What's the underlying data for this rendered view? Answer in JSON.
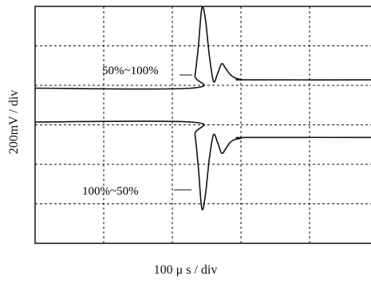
{
  "chart_data": {
    "type": "line",
    "xlabel": "100 μ s / div",
    "ylabel": "200mV / div",
    "x_divisions": 5,
    "y_divisions": 6,
    "grid": true,
    "grid_style": "dashed",
    "line_color": "#111111",
    "series": [
      {
        "name": "50%~100%",
        "x": [
          0.0,
          2.28,
          2.33,
          2.38,
          2.43,
          2.48,
          2.54,
          2.6,
          2.66,
          2.72,
          2.78,
          2.84,
          2.9,
          3.0,
          3.1,
          5.0
        ],
        "y": [
          3.93,
          3.93,
          4.25,
          5.0,
          5.95,
          5.7,
          4.75,
          4.1,
          4.3,
          4.55,
          4.42,
          4.28,
          4.2,
          4.15,
          4.14,
          4.14
        ]
      },
      {
        "name": "100%~50%",
        "x": [
          0.0,
          2.28,
          2.33,
          2.38,
          2.43,
          2.48,
          2.54,
          2.6,
          2.66,
          2.72,
          2.78,
          2.84,
          2.9,
          3.0,
          3.1,
          5.0
        ],
        "y": [
          3.07,
          3.07,
          2.75,
          1.9,
          0.88,
          1.2,
          2.15,
          2.75,
          2.55,
          2.28,
          2.4,
          2.55,
          2.62,
          2.66,
          2.68,
          2.68
        ]
      }
    ],
    "annotations": [
      "50%~100%",
      "100%~50%"
    ]
  }
}
